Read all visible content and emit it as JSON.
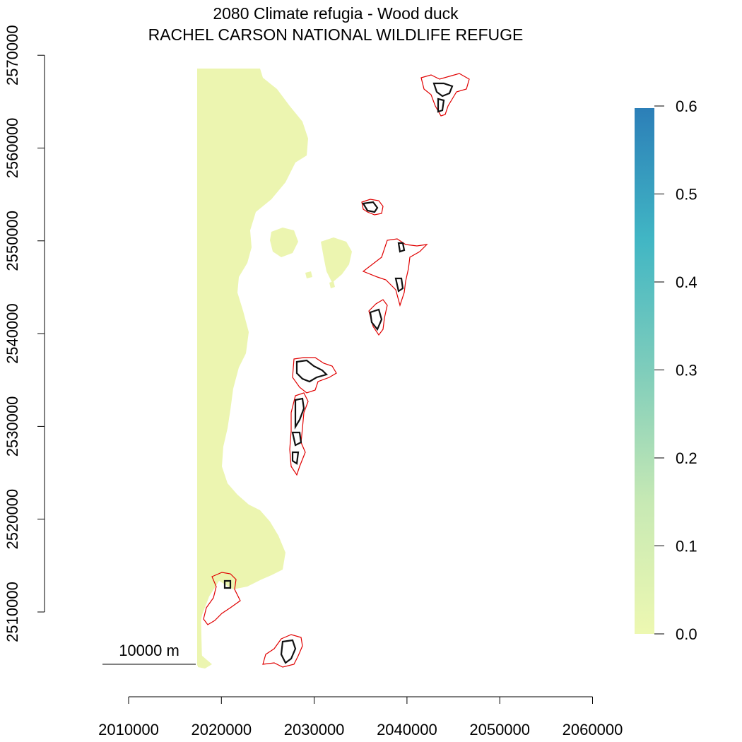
{
  "title": {
    "line1": "2080 Climate refugia - Wood duck",
    "line2": "RACHEL CARSON NATIONAL WILDLIFE REFUGE"
  },
  "x_axis": {
    "ticks": [
      {
        "value": 2010000,
        "label": "2010000"
      },
      {
        "value": 2020000,
        "label": "2020000"
      },
      {
        "value": 2030000,
        "label": "2030000"
      },
      {
        "value": 2040000,
        "label": "2040000"
      },
      {
        "value": 2050000,
        "label": "2050000"
      },
      {
        "value": 2060000,
        "label": "2060000"
      }
    ]
  },
  "y_axis": {
    "ticks": [
      {
        "value": 2510000,
        "label": "2510000"
      },
      {
        "value": 2520000,
        "label": "2520000"
      },
      {
        "value": 2530000,
        "label": "2530000"
      },
      {
        "value": 2540000,
        "label": "2540000"
      },
      {
        "value": 2550000,
        "label": "2550000"
      },
      {
        "value": 2560000,
        "label": "2560000"
      },
      {
        "value": 2570000,
        "label": "2570000"
      }
    ]
  },
  "legend": {
    "min": 0.0,
    "max": 0.6,
    "colors": [
      "#edf8b1",
      "#c7e9b4",
      "#7fcdbb",
      "#41b6c4",
      "#2c7fb8"
    ],
    "ticks": [
      {
        "value": 0.0,
        "label": "0.0"
      },
      {
        "value": 0.1,
        "label": "0.1"
      },
      {
        "value": 0.2,
        "label": "0.2"
      },
      {
        "value": 0.3,
        "label": "0.3"
      },
      {
        "value": 0.4,
        "label": "0.4"
      },
      {
        "value": 0.5,
        "label": "0.5"
      },
      {
        "value": 0.6,
        "label": "0.6"
      }
    ]
  },
  "scale_bar": {
    "label": "10000 m"
  },
  "colors": {
    "land": "#ecf5b0",
    "refuge_boundary": "#e00000",
    "refugia_outline": "#111111"
  }
}
